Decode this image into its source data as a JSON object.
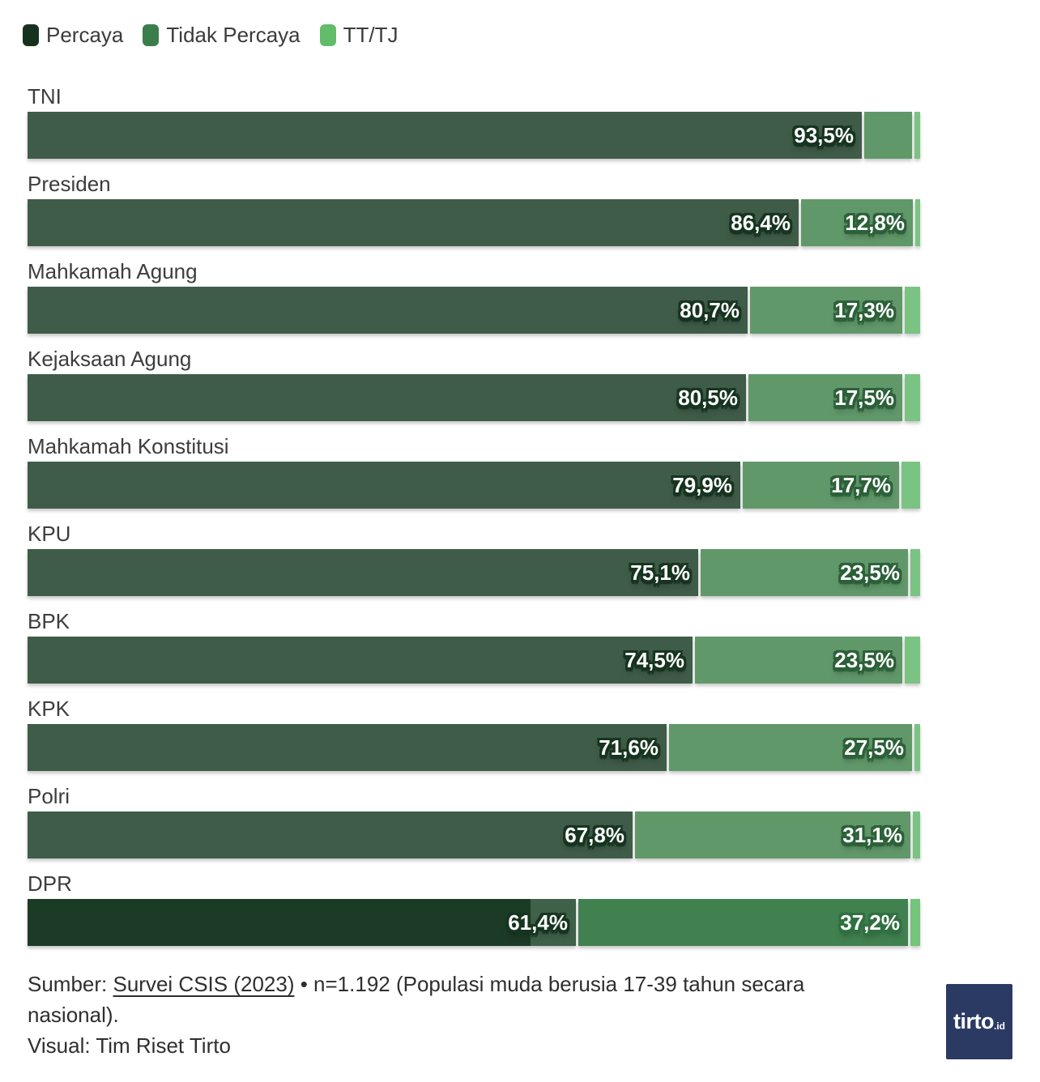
{
  "legend": {
    "items": [
      {
        "label": "Percaya",
        "color": "#16321f"
      },
      {
        "label": "Tidak Percaya",
        "color": "#3b7d4d"
      },
      {
        "label": "TT/TJ",
        "color": "#62bc69"
      }
    ]
  },
  "palette": {
    "bar_percaya": "#3f5c48",
    "bar_tidak": "#61986a",
    "bar_tt": "#7bc382",
    "hl_percaya": "#1c3b26",
    "hl_percaya_tail": "#3f6049",
    "hl_tidak": "#418150",
    "hl_tt": "#74c47c",
    "outline_on_dark": "#16341f",
    "outline_on_mid": "#2c6038",
    "outline_on_hl_mid": "#2f7040",
    "logo_bg": "#2b3a63"
  },
  "rows": [
    {
      "category": "TNI",
      "highlight": false,
      "values": [
        93.5,
        5.6,
        0.9
      ],
      "value_labels": [
        "93,5%",
        null,
        null
      ]
    },
    {
      "category": "Presiden",
      "highlight": false,
      "values": [
        86.4,
        12.8,
        0.8
      ],
      "value_labels": [
        "86,4%",
        "12,8%",
        null
      ]
    },
    {
      "category": "Mahkamah Agung",
      "highlight": false,
      "values": [
        80.7,
        17.3,
        2.0
      ],
      "value_labels": [
        "80,7%",
        "17,3%",
        null
      ]
    },
    {
      "category": "Kejaksaan Agung",
      "highlight": false,
      "values": [
        80.5,
        17.5,
        2.0
      ],
      "value_labels": [
        "80,5%",
        "17,5%",
        null
      ]
    },
    {
      "category": "Mahkamah Konstitusi",
      "highlight": false,
      "values": [
        79.9,
        17.7,
        2.4
      ],
      "value_labels": [
        "79,9%",
        "17,7%",
        null
      ]
    },
    {
      "category": "KPU",
      "highlight": false,
      "values": [
        75.1,
        23.5,
        1.4
      ],
      "value_labels": [
        "75,1%",
        "23,5%",
        null
      ]
    },
    {
      "category": "BPK",
      "highlight": false,
      "values": [
        74.5,
        23.5,
        2.0
      ],
      "value_labels": [
        "74,5%",
        "23,5%",
        null
      ]
    },
    {
      "category": "KPK",
      "highlight": false,
      "values": [
        71.6,
        27.5,
        0.9
      ],
      "value_labels": [
        "71,6%",
        "27,5%",
        null
      ]
    },
    {
      "category": "Polri",
      "highlight": false,
      "values": [
        67.8,
        31.1,
        1.1
      ],
      "value_labels": [
        "67,8%",
        "31,1%",
        null
      ]
    },
    {
      "category": "DPR",
      "highlight": true,
      "values": [
        61.4,
        37.2,
        1.4
      ],
      "value_labels": [
        "61,4%",
        "37,2%",
        null
      ]
    }
  ],
  "chart_data": {
    "type": "bar",
    "orientation": "horizontal",
    "stacked": true,
    "categories": [
      "TNI",
      "Presiden",
      "Mahkamah Agung",
      "Kejaksaan Agung",
      "Mahkamah Konstitusi",
      "KPU",
      "BPK",
      "KPK",
      "Polri",
      "DPR"
    ],
    "series": [
      {
        "name": "Percaya",
        "values": [
          93.5,
          86.4,
          80.7,
          80.5,
          79.9,
          75.1,
          74.5,
          71.6,
          67.8,
          61.4
        ]
      },
      {
        "name": "Tidak Percaya",
        "values": [
          5.6,
          12.8,
          17.3,
          17.5,
          17.7,
          23.5,
          23.5,
          27.5,
          31.1,
          37.2
        ]
      },
      {
        "name": "TT/TJ",
        "values": [
          0.9,
          0.8,
          2.0,
          2.0,
          2.4,
          1.4,
          2.0,
          0.9,
          1.1,
          1.4
        ]
      }
    ],
    "xlim": [
      0,
      100
    ],
    "value_label_format": "decimal-comma-percent",
    "notes": "TT/TJ segments and TNI Tidak Percaya segment are unlabeled in the graphic (values estimated from segment widths); DPR row rendered in highlighted full-intensity colors",
    "legend_position": "top-left",
    "grid": false
  },
  "footer": {
    "sumber_prefix": "Sumber: ",
    "source_link_text": "Survei CSIS (2023)",
    "source_rest": " • n=1.192 (Populasi muda berusia 17-39 tahun secara nasional).",
    "visual_line": "Visual: Tim Riset Tirto"
  },
  "logo": {
    "main": "tirto",
    "suffix": ".id"
  }
}
